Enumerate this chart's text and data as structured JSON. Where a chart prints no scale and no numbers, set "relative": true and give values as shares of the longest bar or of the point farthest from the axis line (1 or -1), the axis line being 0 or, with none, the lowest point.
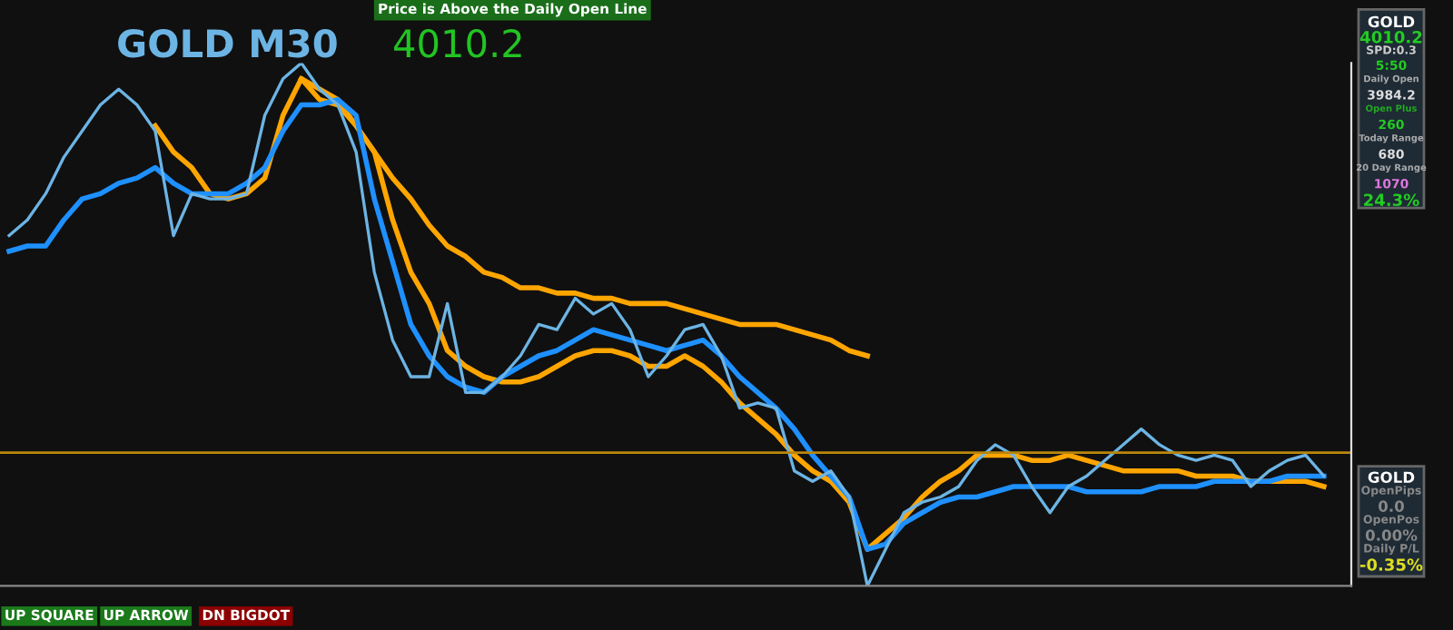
{
  "chart_data": {
    "type": "line",
    "relative": true,
    "title": "GOLD M30",
    "subtitle": "4010.2",
    "categories": [
      null,
      null,
      null,
      null,
      null,
      null,
      null,
      null,
      null,
      null,
      null,
      null,
      null,
      null,
      null,
      null,
      null,
      null,
      null,
      null,
      null,
      null,
      null,
      null,
      null,
      null,
      null,
      null,
      null,
      null,
      null,
      null,
      null,
      null,
      null,
      null,
      null,
      null,
      null,
      null,
      null,
      null,
      null,
      null,
      null,
      null,
      null,
      null,
      null,
      null,
      null,
      null,
      null,
      null,
      null,
      null,
      null,
      null,
      null,
      null,
      null,
      null,
      null,
      null,
      null,
      null,
      null,
      null,
      null,
      null,
      null,
      null,
      null
    ],
    "series": [
      {
        "color": "#ffa500",
        "values": [
          null,
          null,
          null,
          null,
          null,
          null,
          null,
          null,
          null,
          null,
          null,
          null,
          null,
          null,
          null,
          null,
          0.97,
          0.95,
          0.93,
          0.88,
          0.83,
          0.78,
          0.74,
          0.69,
          0.65,
          0.63,
          0.6,
          0.59,
          0.57,
          0.57,
          0.56,
          0.56,
          0.55,
          0.55,
          0.54,
          0.54,
          0.54,
          0.53,
          0.52,
          0.51,
          0.5,
          0.5,
          0.5,
          0.49,
          0.48,
          0.47,
          0.45,
          0.44,
          null,
          null,
          null,
          null,
          null,
          null,
          null,
          null,
          null,
          null,
          null,
          null,
          null,
          null,
          null,
          null,
          null,
          null,
          null,
          null,
          null,
          null,
          null,
          null,
          null
        ]
      },
      {
        "color": "#ffa500",
        "values": [
          null,
          null,
          null,
          null,
          null,
          null,
          null,
          null,
          0.88,
          0.83,
          0.8,
          0.75,
          0.74,
          0.75,
          0.78,
          0.9,
          0.97,
          0.93,
          0.92,
          0.88,
          0.83,
          0.7,
          0.6,
          0.54,
          0.45,
          0.42,
          0.4,
          0.39,
          0.39,
          0.4,
          0.42,
          0.44,
          0.45,
          0.45,
          0.44,
          0.42,
          0.42,
          0.44,
          0.42,
          0.39,
          0.35,
          0.32,
          0.29,
          0.25,
          0.22,
          0.2,
          0.16,
          0.07,
          0.1,
          0.13,
          0.17,
          0.2,
          0.22,
          0.25,
          0.25,
          0.25,
          0.24,
          0.24,
          0.25,
          0.24,
          0.23,
          0.22,
          0.22,
          0.22,
          0.22,
          0.21,
          0.21,
          0.21,
          0.2,
          0.2,
          0.2,
          0.2,
          0.19
        ]
      },
      {
        "color": "#1e90ff",
        "values": [
          0.64,
          0.65,
          0.65,
          0.7,
          0.74,
          0.75,
          0.77,
          0.78,
          0.8,
          0.77,
          0.75,
          0.75,
          0.75,
          0.77,
          0.8,
          0.87,
          0.92,
          0.92,
          0.93,
          0.9,
          0.74,
          0.62,
          0.5,
          0.44,
          0.4,
          0.38,
          0.37,
          0.4,
          0.42,
          0.44,
          0.45,
          0.47,
          0.49,
          0.48,
          0.47,
          0.46,
          0.45,
          0.46,
          0.47,
          0.44,
          0.4,
          0.37,
          0.34,
          0.3,
          0.25,
          0.21,
          0.17,
          0.07,
          0.08,
          0.12,
          0.14,
          0.16,
          0.17,
          0.17,
          0.18,
          0.19,
          0.19,
          0.19,
          0.19,
          0.18,
          0.18,
          0.18,
          0.18,
          0.19,
          0.19,
          0.19,
          0.2,
          0.2,
          0.2,
          0.2,
          0.21,
          0.21,
          0.21
        ]
      },
      {
        "color": "#6cb4e4",
        "values": [
          0.67,
          0.7,
          0.75,
          0.82,
          0.87,
          0.92,
          0.95,
          0.92,
          0.87,
          0.67,
          0.75,
          0.74,
          0.74,
          0.75,
          0.9,
          0.97,
          1.0,
          0.95,
          0.92,
          0.83,
          0.6,
          0.47,
          0.4,
          0.4,
          0.54,
          0.37,
          0.37,
          0.4,
          0.44,
          0.5,
          0.49,
          0.55,
          0.52,
          0.54,
          0.49,
          0.4,
          0.44,
          0.49,
          0.5,
          0.44,
          0.34,
          0.35,
          0.34,
          0.22,
          0.2,
          0.22,
          0.17,
          0,
          0.07,
          0.14,
          0.16,
          0.17,
          0.19,
          0.24,
          0.27,
          0.25,
          0.19,
          0.14,
          0.19,
          0.21,
          0.24,
          0.27,
          0.3,
          0.27,
          0.25,
          0.24,
          0.25,
          0.24,
          0.19,
          0.22,
          0.24,
          0.25,
          0.21
        ]
      }
    ],
    "ref_lines": [
      {
        "axis": "y",
        "value": 0.255,
        "color": "#b8860b"
      }
    ],
    "annotations": [
      "Price is Above the Daily Open Line",
      "UP SQUARE",
      "UP ARROW",
      "DN BIGDOT",
      "GOLD",
      "4010.2",
      "SPD:0.3",
      "5:50",
      "Daily Open",
      "3984.2",
      "Open Plus",
      "260",
      "Today Range",
      "680",
      "20 Day Range",
      "1070",
      "24.3%",
      "GOLD",
      "OpenPips",
      "0.0",
      "OpenPos",
      "0.00%",
      "Daily P/L",
      "-0.35%"
    ],
    "line_style": "solid",
    "marker": "none"
  }
}
